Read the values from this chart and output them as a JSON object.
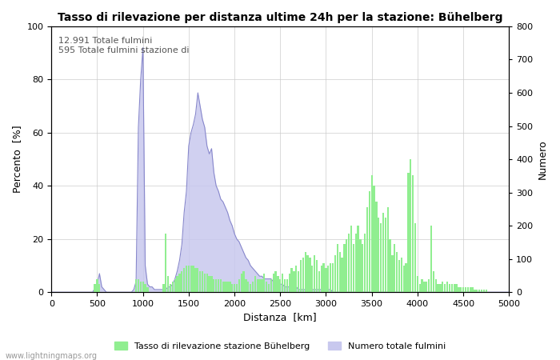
{
  "title": "Tasso di rilevazione per distanza ultime 24h per la stazione: Bühelberg",
  "xlabel": "Distanza  [km]",
  "ylabel_left": "Percento  [%]",
  "ylabel_right": "Numero",
  "annotation_line1": "12.991 Totale fulmini",
  "annotation_line2": "595 Totale fulmini stazione di",
  "legend_green": "Tasso di rilevazione stazione Bühelberg",
  "legend_blue": "Numero totale fulmini",
  "watermark": "www.lightningmaps.org",
  "xlim": [
    0,
    5000
  ],
  "ylim_left": [
    0,
    100
  ],
  "ylim_right": [
    0,
    800
  ],
  "xticks": [
    0,
    500,
    1000,
    1500,
    2000,
    2500,
    3000,
    3500,
    4000,
    4500,
    5000
  ],
  "yticks_left": [
    0,
    20,
    40,
    60,
    80,
    100
  ],
  "yticks_right": [
    0,
    100,
    200,
    300,
    400,
    500,
    600,
    700,
    800
  ],
  "bar_color_green": "#90ee90",
  "fill_color_blue": "#c8c8ee",
  "line_color_blue": "#8888cc",
  "bg_color": "#ffffff",
  "grid_color": "#cccccc",
  "title_fontsize": 10,
  "label_fontsize": 9,
  "tick_fontsize": 8,
  "annotation_fontsize": 8,
  "dist_step": 25,
  "blue_pct": [
    [
      0,
      0
    ],
    [
      100,
      0
    ],
    [
      200,
      0
    ],
    [
      250,
      0
    ],
    [
      300,
      0
    ],
    [
      350,
      0
    ],
    [
      400,
      0
    ],
    [
      450,
      0
    ],
    [
      500,
      3
    ],
    [
      525,
      7
    ],
    [
      550,
      2
    ],
    [
      575,
      1
    ],
    [
      600,
      0
    ],
    [
      625,
      0
    ],
    [
      650,
      0
    ],
    [
      675,
      0
    ],
    [
      700,
      0
    ],
    [
      725,
      0
    ],
    [
      750,
      0
    ],
    [
      775,
      0
    ],
    [
      800,
      0
    ],
    [
      825,
      0
    ],
    [
      850,
      0
    ],
    [
      875,
      0
    ],
    [
      900,
      1
    ],
    [
      925,
      4
    ],
    [
      950,
      62
    ],
    [
      975,
      80
    ],
    [
      1000,
      92
    ],
    [
      1025,
      10
    ],
    [
      1050,
      3
    ],
    [
      1075,
      2
    ],
    [
      1100,
      2
    ],
    [
      1125,
      1
    ],
    [
      1150,
      1
    ],
    [
      1175,
      1
    ],
    [
      1200,
      1
    ],
    [
      1225,
      1
    ],
    [
      1250,
      1
    ],
    [
      1275,
      2
    ],
    [
      1300,
      2
    ],
    [
      1325,
      3
    ],
    [
      1350,
      5
    ],
    [
      1375,
      8
    ],
    [
      1400,
      12
    ],
    [
      1425,
      18
    ],
    [
      1450,
      30
    ],
    [
      1475,
      38
    ],
    [
      1500,
      55
    ],
    [
      1525,
      60
    ],
    [
      1550,
      63
    ],
    [
      1575,
      67
    ],
    [
      1600,
      75
    ],
    [
      1625,
      70
    ],
    [
      1650,
      65
    ],
    [
      1675,
      62
    ],
    [
      1700,
      55
    ],
    [
      1725,
      52
    ],
    [
      1750,
      54
    ],
    [
      1775,
      45
    ],
    [
      1800,
      40
    ],
    [
      1825,
      38
    ],
    [
      1850,
      35
    ],
    [
      1875,
      34
    ],
    [
      1900,
      32
    ],
    [
      1925,
      30
    ],
    [
      1950,
      27
    ],
    [
      1975,
      25
    ],
    [
      2000,
      22
    ],
    [
      2025,
      20
    ],
    [
      2050,
      19
    ],
    [
      2075,
      17
    ],
    [
      2100,
      15
    ],
    [
      2125,
      13
    ],
    [
      2150,
      12
    ],
    [
      2175,
      10
    ],
    [
      2200,
      9
    ],
    [
      2225,
      8
    ],
    [
      2250,
      7
    ],
    [
      2275,
      6
    ],
    [
      2300,
      6
    ],
    [
      2325,
      5
    ],
    [
      2350,
      5
    ],
    [
      2375,
      5
    ],
    [
      2400,
      5
    ],
    [
      2425,
      4
    ],
    [
      2450,
      4
    ],
    [
      2475,
      3
    ],
    [
      2500,
      3
    ],
    [
      2525,
      3
    ],
    [
      2550,
      2
    ],
    [
      2575,
      2
    ],
    [
      2600,
      2
    ],
    [
      2625,
      2
    ],
    [
      2650,
      2
    ],
    [
      2675,
      2
    ],
    [
      2700,
      1
    ],
    [
      2725,
      1
    ],
    [
      2750,
      1
    ],
    [
      2775,
      1
    ],
    [
      2800,
      1
    ],
    [
      2825,
      1
    ],
    [
      2850,
      1
    ],
    [
      2875,
      1
    ],
    [
      2900,
      1
    ],
    [
      2925,
      1
    ],
    [
      2950,
      1
    ],
    [
      2975,
      1
    ],
    [
      3000,
      1
    ],
    [
      3025,
      1
    ],
    [
      3050,
      1
    ],
    [
      3075,
      0
    ],
    [
      3100,
      0
    ],
    [
      3125,
      0
    ],
    [
      3150,
      0
    ],
    [
      3200,
      0
    ],
    [
      3250,
      0
    ],
    [
      3300,
      0
    ],
    [
      3350,
      0
    ],
    [
      3400,
      0
    ],
    [
      3450,
      0
    ],
    [
      3500,
      0
    ],
    [
      3600,
      0
    ],
    [
      3700,
      0
    ],
    [
      3800,
      0
    ],
    [
      3900,
      0
    ],
    [
      4000,
      0
    ],
    [
      4100,
      0
    ],
    [
      4200,
      0
    ],
    [
      4300,
      0
    ],
    [
      4400,
      0
    ],
    [
      4500,
      0
    ],
    [
      4600,
      0
    ],
    [
      4700,
      0
    ],
    [
      4800,
      0
    ],
    [
      4900,
      0
    ],
    [
      5000,
      0
    ]
  ],
  "green_bars": [
    [
      475,
      3
    ],
    [
      500,
      5
    ],
    [
      525,
      3
    ],
    [
      925,
      5
    ],
    [
      950,
      5
    ],
    [
      975,
      4
    ],
    [
      1000,
      4
    ],
    [
      1025,
      3
    ],
    [
      1050,
      2
    ],
    [
      1225,
      3
    ],
    [
      1250,
      22
    ],
    [
      1275,
      6
    ],
    [
      1300,
      3
    ],
    [
      1325,
      4
    ],
    [
      1350,
      5
    ],
    [
      1375,
      6
    ],
    [
      1400,
      7
    ],
    [
      1425,
      8
    ],
    [
      1450,
      9
    ],
    [
      1475,
      10
    ],
    [
      1500,
      10
    ],
    [
      1525,
      10
    ],
    [
      1550,
      10
    ],
    [
      1575,
      9
    ],
    [
      1600,
      9
    ],
    [
      1625,
      8
    ],
    [
      1650,
      8
    ],
    [
      1675,
      7
    ],
    [
      1700,
      7
    ],
    [
      1725,
      6
    ],
    [
      1750,
      6
    ],
    [
      1775,
      5
    ],
    [
      1800,
      5
    ],
    [
      1825,
      5
    ],
    [
      1850,
      5
    ],
    [
      1875,
      4
    ],
    [
      1900,
      4
    ],
    [
      1925,
      4
    ],
    [
      1950,
      4
    ],
    [
      1975,
      3
    ],
    [
      2000,
      3
    ],
    [
      2025,
      3
    ],
    [
      2050,
      5
    ],
    [
      2075,
      7
    ],
    [
      2100,
      8
    ],
    [
      2125,
      5
    ],
    [
      2150,
      4
    ],
    [
      2175,
      3
    ],
    [
      2200,
      4
    ],
    [
      2225,
      6
    ],
    [
      2250,
      5
    ],
    [
      2275,
      5
    ],
    [
      2300,
      5
    ],
    [
      2325,
      7
    ],
    [
      2350,
      4
    ],
    [
      2375,
      3
    ],
    [
      2400,
      5
    ],
    [
      2425,
      7
    ],
    [
      2450,
      8
    ],
    [
      2475,
      6
    ],
    [
      2500,
      5
    ],
    [
      2525,
      7
    ],
    [
      2550,
      5
    ],
    [
      2575,
      5
    ],
    [
      2600,
      7
    ],
    [
      2625,
      9
    ],
    [
      2650,
      8
    ],
    [
      2675,
      10
    ],
    [
      2700,
      8
    ],
    [
      2725,
      12
    ],
    [
      2750,
      13
    ],
    [
      2775,
      15
    ],
    [
      2800,
      14
    ],
    [
      2825,
      13
    ],
    [
      2850,
      10
    ],
    [
      2875,
      14
    ],
    [
      2900,
      12
    ],
    [
      2925,
      8
    ],
    [
      2950,
      10
    ],
    [
      2975,
      11
    ],
    [
      3000,
      9
    ],
    [
      3025,
      10
    ],
    [
      3050,
      11
    ],
    [
      3075,
      11
    ],
    [
      3100,
      14
    ],
    [
      3125,
      18
    ],
    [
      3150,
      15
    ],
    [
      3175,
      13
    ],
    [
      3200,
      18
    ],
    [
      3225,
      20
    ],
    [
      3250,
      22
    ],
    [
      3275,
      25
    ],
    [
      3300,
      18
    ],
    [
      3325,
      22
    ],
    [
      3350,
      25
    ],
    [
      3375,
      20
    ],
    [
      3400,
      18
    ],
    [
      3425,
      22
    ],
    [
      3450,
      32
    ],
    [
      3475,
      38
    ],
    [
      3500,
      44
    ],
    [
      3525,
      40
    ],
    [
      3550,
      34
    ],
    [
      3575,
      28
    ],
    [
      3600,
      26
    ],
    [
      3625,
      30
    ],
    [
      3650,
      28
    ],
    [
      3675,
      32
    ],
    [
      3700,
      20
    ],
    [
      3725,
      14
    ],
    [
      3750,
      18
    ],
    [
      3775,
      15
    ],
    [
      3800,
      12
    ],
    [
      3825,
      13
    ],
    [
      3850,
      10
    ],
    [
      3875,
      11
    ],
    [
      3900,
      45
    ],
    [
      3925,
      50
    ],
    [
      3950,
      44
    ],
    [
      3975,
      26
    ],
    [
      4000,
      6
    ],
    [
      4025,
      3
    ],
    [
      4050,
      5
    ],
    [
      4075,
      4
    ],
    [
      4100,
      4
    ],
    [
      4125,
      5
    ],
    [
      4150,
      25
    ],
    [
      4175,
      8
    ],
    [
      4200,
      5
    ],
    [
      4225,
      3
    ],
    [
      4250,
      3
    ],
    [
      4275,
      4
    ],
    [
      4300,
      3
    ],
    [
      4325,
      4
    ],
    [
      4350,
      3
    ],
    [
      4375,
      3
    ],
    [
      4400,
      3
    ],
    [
      4425,
      3
    ],
    [
      4450,
      2
    ],
    [
      4475,
      2
    ],
    [
      4500,
      2
    ],
    [
      4525,
      2
    ],
    [
      4550,
      2
    ],
    [
      4575,
      2
    ],
    [
      4600,
      2
    ],
    [
      4625,
      1
    ],
    [
      4650,
      1
    ],
    [
      4675,
      1
    ],
    [
      4700,
      1
    ],
    [
      4725,
      1
    ],
    [
      4750,
      1
    ]
  ]
}
